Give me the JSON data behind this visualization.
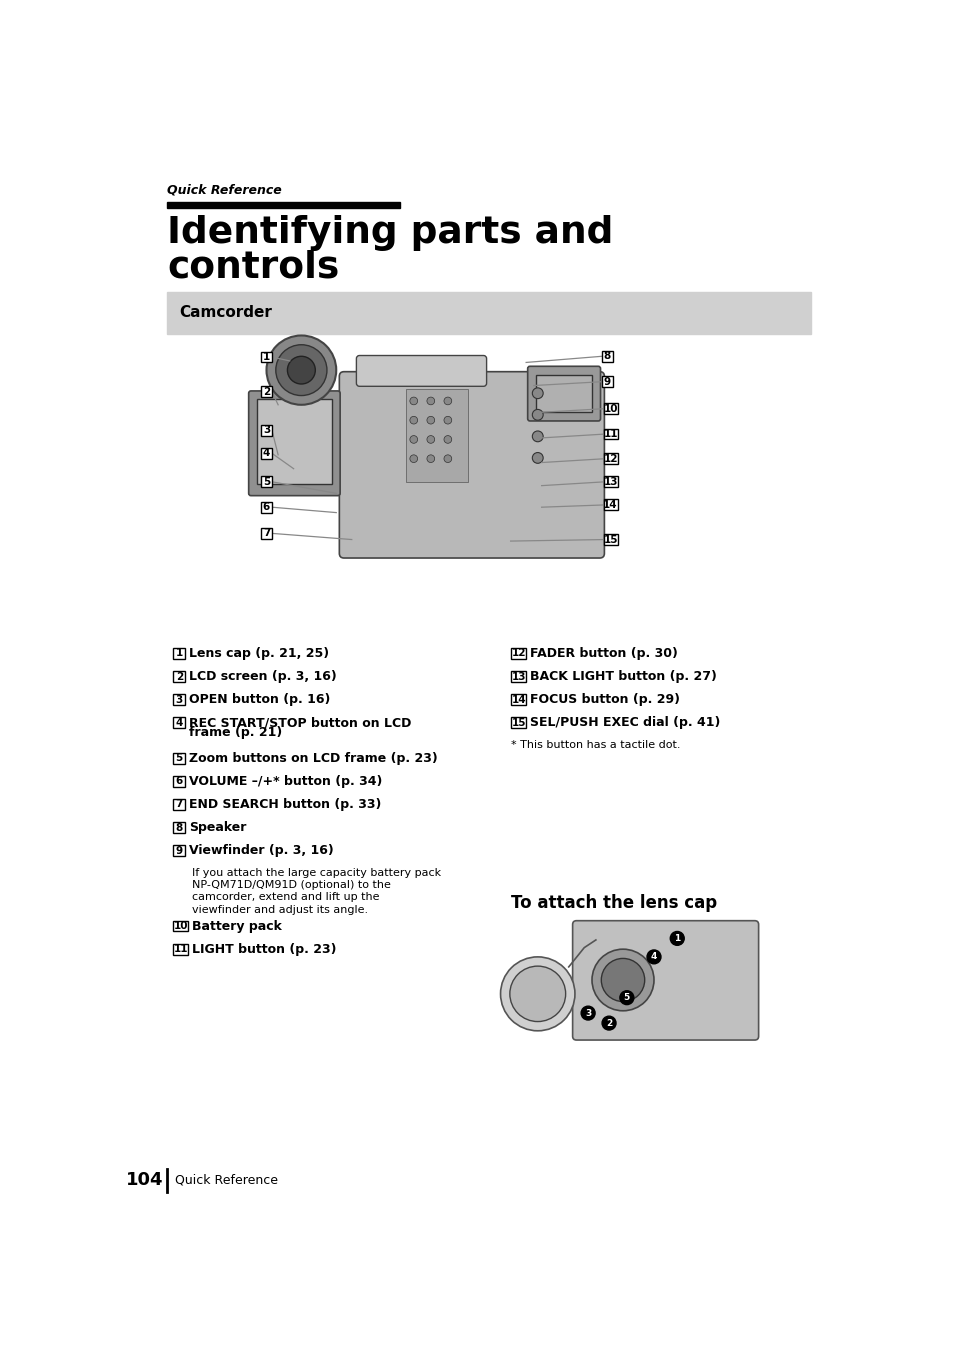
{
  "page_title_small": "Quick Reference",
  "title_bar_color": "#000000",
  "title_line1": "Identifying parts and",
  "title_line2": "controls",
  "section_bg_color": "#d0d0d0",
  "section_label": "Camcorder",
  "left_items": [
    {
      "num": "1",
      "text": "Lens cap (p. 21, 25)",
      "bold": true,
      "note": false
    },
    {
      "num": "2",
      "text": "LCD screen (p. 3, 16)",
      "bold": true,
      "note": false
    },
    {
      "num": "3",
      "text": "OPEN button (p. 16)",
      "bold": true,
      "note": false
    },
    {
      "num": "4",
      "text": "REC START/STOP button on LCD",
      "text2": "frame (p. 21)",
      "bold": true,
      "note": false
    },
    {
      "num": "5",
      "text": "Zoom buttons on LCD frame (p. 23)",
      "bold": true,
      "note": false
    },
    {
      "num": "6",
      "text": "VOLUME -/+* button (p. 34)",
      "bold": true,
      "note": false
    },
    {
      "num": "7",
      "text": "END SEARCH button (p. 33)",
      "bold": true,
      "note": false
    },
    {
      "num": "8",
      "text": "Speaker",
      "bold": true,
      "note": false
    },
    {
      "num": "9",
      "text": "Viewfinder (p. 3, 16)",
      "bold": true,
      "note": false
    },
    {
      "num": "",
      "text": "If you attach the large capacity battery pack",
      "text2": "NP-QM71D/QM91D (optional) to the",
      "text3": "camcorder, extend and lift up the",
      "text4": "viewfinder and adjust its angle.",
      "bold": false,
      "note": true
    },
    {
      "num": "10",
      "text": "Battery pack",
      "bold": true,
      "note": false
    },
    {
      "num": "11",
      "text": "LIGHT button (p. 23)",
      "bold": true,
      "note": false
    }
  ],
  "right_items": [
    {
      "num": "12",
      "text": "FADER button (p. 30)",
      "bold": true,
      "note": false
    },
    {
      "num": "13",
      "text": "BACK LIGHT button (p. 27)",
      "bold": true,
      "note": false
    },
    {
      "num": "14",
      "text": "FOCUS button (p. 29)",
      "bold": true,
      "note": false
    },
    {
      "num": "15",
      "text": "SEL/PUSH EXEC dial (p. 41)",
      "bold": true,
      "note": false
    },
    {
      "num": "",
      "text": "* This button has a tactile dot.",
      "bold": false,
      "note": true
    }
  ],
  "attach_title": "To attach the lens cap",
  "footer_num": "104",
  "footer_text": "Quick Reference",
  "bg_color": "#ffffff",
  "text_color": "#000000",
  "vol_minus": "–"
}
